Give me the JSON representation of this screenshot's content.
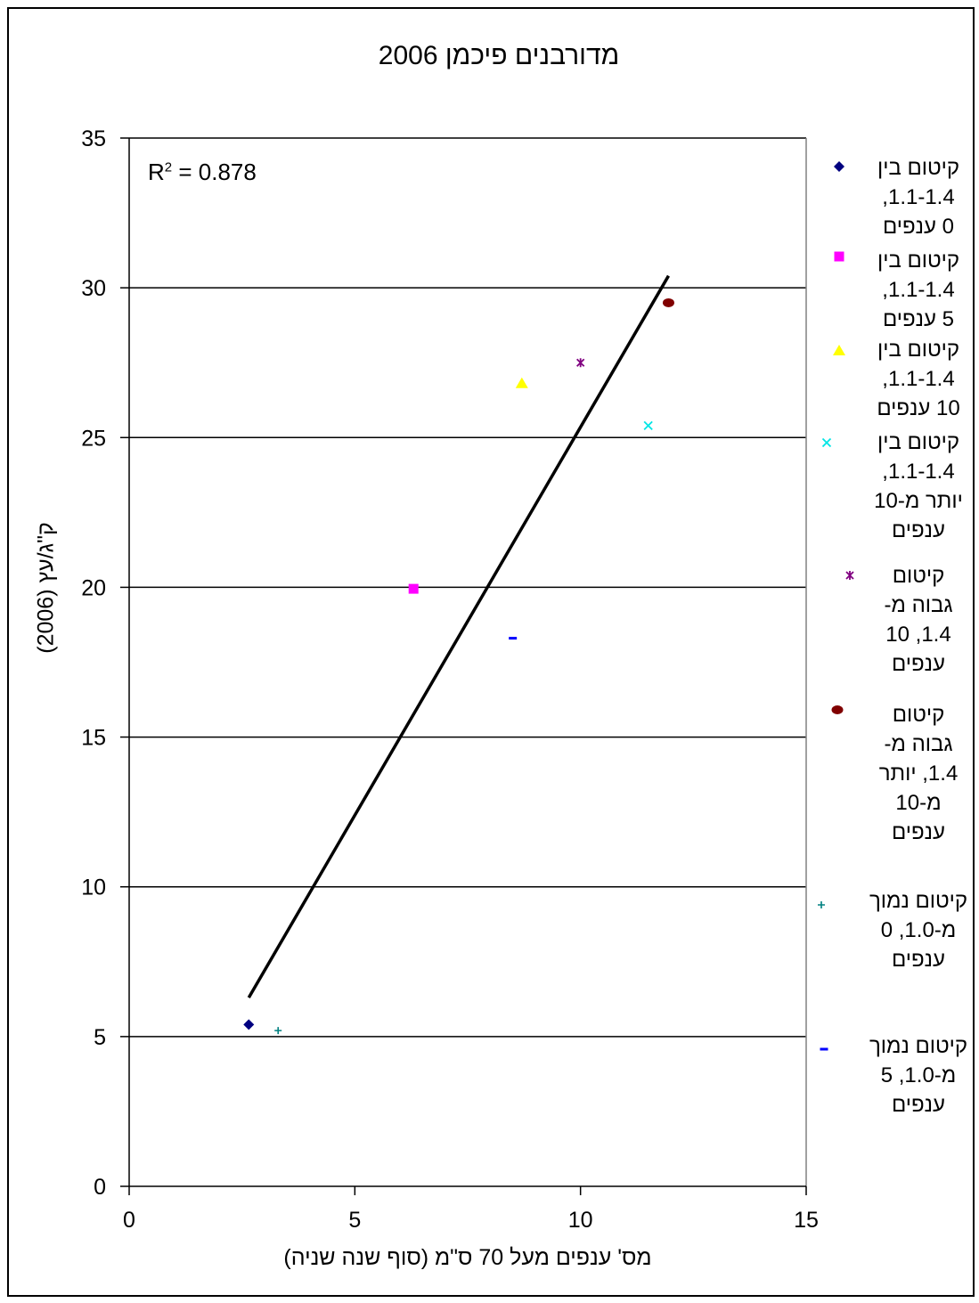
{
  "chart_data": {
    "type": "scatter",
    "title": "מדורבנים פיכמן 2006",
    "xlabel": "מס' ענפים מעל 70 ס\"מ (סוף שנה שניה)",
    "ylabel": "ק\"ג/עץ (2006)",
    "xlim": [
      0,
      15
    ],
    "ylim": [
      0,
      35
    ],
    "x_ticks": [
      "0",
      "5",
      "10",
      "15"
    ],
    "y_ticks": [
      "0",
      "5",
      "10",
      "15",
      "20",
      "25",
      "30",
      "35"
    ],
    "grid": "horizontal",
    "legend_position": "right",
    "r2_label": "R",
    "r2_exp": "2",
    "r2_value": " = 0.878",
    "trendline": {
      "type": "linear",
      "x": [
        2.65,
        11.95
      ],
      "y": [
        6.3,
        30.4
      ]
    },
    "series": [
      {
        "name": "קיטום בין 1.1-1.4, 0 ענפים",
        "marker": "diamond",
        "color": "#000080",
        "x": [
          2.65
        ],
        "y": [
          5.4
        ]
      },
      {
        "name": "קיטום בין 1.1-1.4, 5 ענפים",
        "marker": "square",
        "color": "#ff00ff",
        "x": [
          6.3
        ],
        "y": [
          19.95
        ]
      },
      {
        "name": "קיטום בין 1.1-1.4, 10 ענפים",
        "marker": "triangle",
        "color": "#ffff00",
        "x": [
          8.7
        ],
        "y": [
          26.8
        ]
      },
      {
        "name": "קיטום בין 1.1-1.4, יותר מ-10 ענפים",
        "marker": "x",
        "color": "#00e5e5",
        "x": [
          11.5
        ],
        "y": [
          25.4
        ]
      },
      {
        "name": "קיטום גבוה מ-1.4, 10 ענפים",
        "marker": "star",
        "color": "#800080",
        "x": [
          10.0
        ],
        "y": [
          27.5
        ]
      },
      {
        "name": "קיטום גבוה מ-1.4, יותר מ-10 ענפים",
        "marker": "circle",
        "color": "#800000",
        "x": [
          11.95
        ],
        "y": [
          29.5
        ]
      },
      {
        "name": "קיטום נמוך מ-1.0, 0 ענפים",
        "marker": "plus",
        "color": "#008080",
        "x": [
          3.3
        ],
        "y": [
          5.2
        ]
      },
      {
        "name": "קיטום נמוך מ-1.0, 5 ענפים",
        "marker": "dash",
        "color": "#0000ff",
        "x": [
          8.5
        ],
        "y": [
          18.3
        ]
      }
    ]
  },
  "legend_lines": [
    [
      "קיטום בין",
      "1.1-1.4,",
      "0 ענפים"
    ],
    [
      "קיטום בין",
      "1.1-1.4,",
      "5 ענפים"
    ],
    [
      "קיטום בין",
      "1.1-1.4,",
      "10 ענפים"
    ],
    [
      "קיטום בין",
      "1.1-1.4,",
      "יותר מ-10",
      "ענפים"
    ],
    [
      "קיטום",
      "גבוה מ-",
      "1.4, 10",
      "ענפים"
    ],
    [
      "קיטום",
      "גבוה מ-",
      "1.4, יותר",
      "מ-10",
      "ענפים"
    ],
    [
      "קיטום נמוך",
      "מ-1.0, 0",
      "ענפים"
    ],
    [
      "קיטום נמוך",
      "מ-1.0, 5",
      "ענפים"
    ]
  ]
}
